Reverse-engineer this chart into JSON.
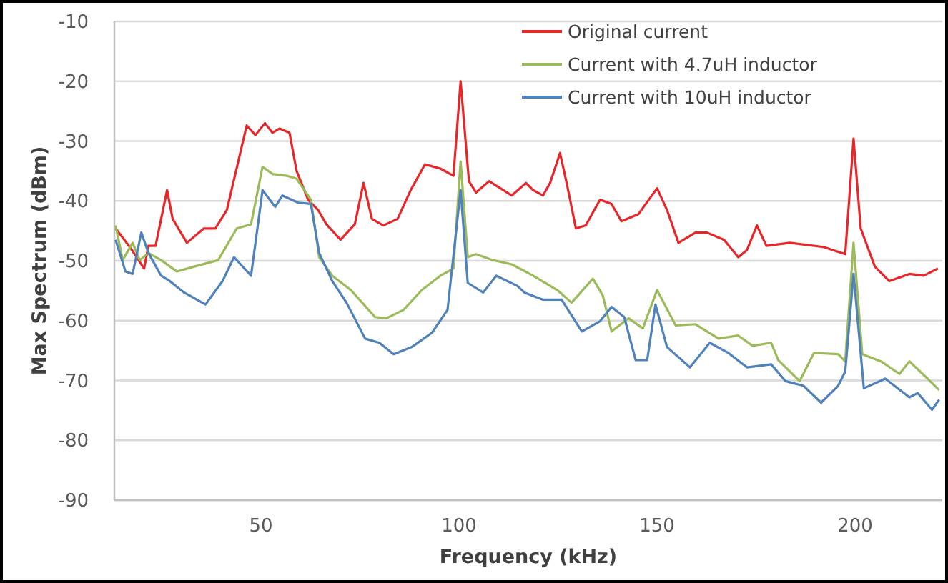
{
  "chart_data": {
    "type": "line",
    "xlabel": "Frequency (kHz)",
    "ylabel": "Max Spectrum (dBm)",
    "xlim": [
      13,
      222
    ],
    "xticks": [
      50,
      100,
      150,
      200
    ],
    "ylim": [
      -90,
      -10
    ],
    "yticks": [
      -90,
      -80,
      -70,
      -60,
      -50,
      -40,
      -30,
      -20,
      -10
    ],
    "grid": "y",
    "legend": "top right",
    "marker": "none",
    "line_style": "solid",
    "series": [
      {
        "name": "Original current",
        "color": "#e8262a",
        "x": [
          13.3,
          16.9,
          20.5,
          21.6,
          23.4,
          26.3,
          27.7,
          31.3,
          35.6,
          38.5,
          41.4,
          46.4,
          48.6,
          51,
          52.9,
          54.7,
          57.2,
          59,
          61.9,
          64.4,
          66.5,
          70.1,
          73.7,
          75.9,
          78,
          80.9,
          84.5,
          87.8,
          91.4,
          95.3,
          98.6,
          100.4,
          102.5,
          104.3,
          107.6,
          113.3,
          116.9,
          118.7,
          121.2,
          123,
          125.5,
          127.3,
          129.5,
          132,
          135.6,
          138.5,
          141,
          145.3,
          150,
          152.5,
          155.4,
          159.7,
          162.6,
          166.9,
          170.5,
          172.7,
          175.2,
          177.6,
          183.5,
          192,
          197.5,
          199.6,
          201.4,
          205,
          208.6,
          213.7,
          217.3,
          220.9
        ],
        "values": [
          -44.6,
          -47.7,
          -51.3,
          -47.5,
          -47.5,
          -38.2,
          -43,
          -47,
          -44.6,
          -44.6,
          -41.5,
          -27.4,
          -29,
          -27,
          -28.6,
          -27.9,
          -28.6,
          -35,
          -39.8,
          -41.5,
          -43.9,
          -46.5,
          -43.9,
          -37,
          -43,
          -44.1,
          -43,
          -38.2,
          -33.9,
          -34.6,
          -35.8,
          -20,
          -36.7,
          -38.6,
          -36.7,
          -39.1,
          -37,
          -38.2,
          -39.1,
          -37,
          -32,
          -37.4,
          -44.6,
          -44.1,
          -39.8,
          -40.5,
          -43.4,
          -42.2,
          -37.9,
          -41.5,
          -47,
          -45.3,
          -45.3,
          -46.5,
          -49.4,
          -48.2,
          -44.1,
          -47.5,
          -47,
          -47.7,
          -48.9,
          -29.6,
          -44.6,
          -51,
          -53.4,
          -52.2,
          -52.5,
          -51.3
        ]
      },
      {
        "name": "Current with 4.7uH inductor",
        "color": "#9bbb59",
        "x": [
          13.3,
          15.1,
          17.6,
          19.4,
          21.6,
          24.8,
          28.8,
          33,
          39.2,
          43.9,
          47.5,
          50.4,
          52.9,
          56.5,
          59,
          62.6,
          64.7,
          68,
          72.7,
          78.8,
          81.7,
          86,
          90.6,
          95.3,
          98.6,
          100.4,
          102.2,
          104.3,
          108.6,
          113.3,
          118.7,
          124.8,
          128.4,
          133.8,
          136.3,
          138.5,
          142.8,
          146.4,
          150,
          154.7,
          159.7,
          165.5,
          170.5,
          174.1,
          178.8,
          180.6,
          186,
          189.6,
          195.7,
          197.5,
          199.6,
          201.8,
          206.5,
          211.2,
          213.7,
          218.3,
          221.2
        ],
        "values": [
          -44.1,
          -49.9,
          -47,
          -49.9,
          -48.7,
          -49.9,
          -51.8,
          -51,
          -49.9,
          -44.6,
          -43.9,
          -34.3,
          -35.5,
          -35.8,
          -36.3,
          -39.8,
          -49.4,
          -52.5,
          -54.9,
          -59.4,
          -59.6,
          -58.2,
          -54.9,
          -52.5,
          -51.3,
          -33.4,
          -49.4,
          -48.9,
          -49.9,
          -50.6,
          -52.5,
          -54.9,
          -57,
          -53,
          -55.8,
          -61.8,
          -59.6,
          -61.3,
          -54.9,
          -60.8,
          -60.6,
          -63,
          -62.5,
          -64.2,
          -63.7,
          -66.6,
          -70.1,
          -65.4,
          -65.6,
          -66.8,
          -47,
          -65.6,
          -66.8,
          -68.9,
          -66.8,
          -69.7,
          -71.6
        ]
      },
      {
        "name": "Current with 10uH inductor",
        "color": "#4f81bd",
        "x": [
          13.3,
          15.8,
          17.6,
          19.8,
          21.6,
          24.8,
          27,
          30.6,
          36,
          40.3,
          43.2,
          47.5,
          50.4,
          53.6,
          55.4,
          59.4,
          62.6,
          64.7,
          68,
          71.6,
          76.3,
          79.9,
          83.5,
          88.1,
          93.2,
          97.1,
          100.4,
          102.2,
          106.1,
          109.4,
          114.7,
          116.5,
          121.2,
          125.9,
          131,
          135.6,
          138.5,
          141.7,
          144.6,
          147.5,
          149.6,
          152.5,
          158.3,
          163.3,
          168,
          172.7,
          178.8,
          182.4,
          187,
          191.4,
          195.7,
          197.5,
          199.6,
          202.2,
          207.6,
          213.7,
          215.8,
          219.4,
          221.2
        ],
        "values": [
          -46.5,
          -51.8,
          -52.2,
          -45.3,
          -48.7,
          -52.5,
          -53.4,
          -55.3,
          -57.3,
          -53.4,
          -49.4,
          -52.5,
          -38.2,
          -41,
          -39.1,
          -40.3,
          -40.5,
          -48.7,
          -53.4,
          -57,
          -63,
          -63.7,
          -65.6,
          -64.4,
          -62,
          -58.2,
          -38.2,
          -53.7,
          -55.3,
          -52.5,
          -54.2,
          -55.3,
          -56.5,
          -56.5,
          -61.8,
          -60.1,
          -57.7,
          -59.4,
          -66.6,
          -66.6,
          -57.3,
          -64.4,
          -67.8,
          -63.7,
          -65.4,
          -67.8,
          -67.3,
          -70.1,
          -70.9,
          -73.7,
          -70.9,
          -68.5,
          -52.2,
          -71.3,
          -69.7,
          -72.8,
          -72.1,
          -74.9,
          -73.2
        ]
      }
    ]
  }
}
